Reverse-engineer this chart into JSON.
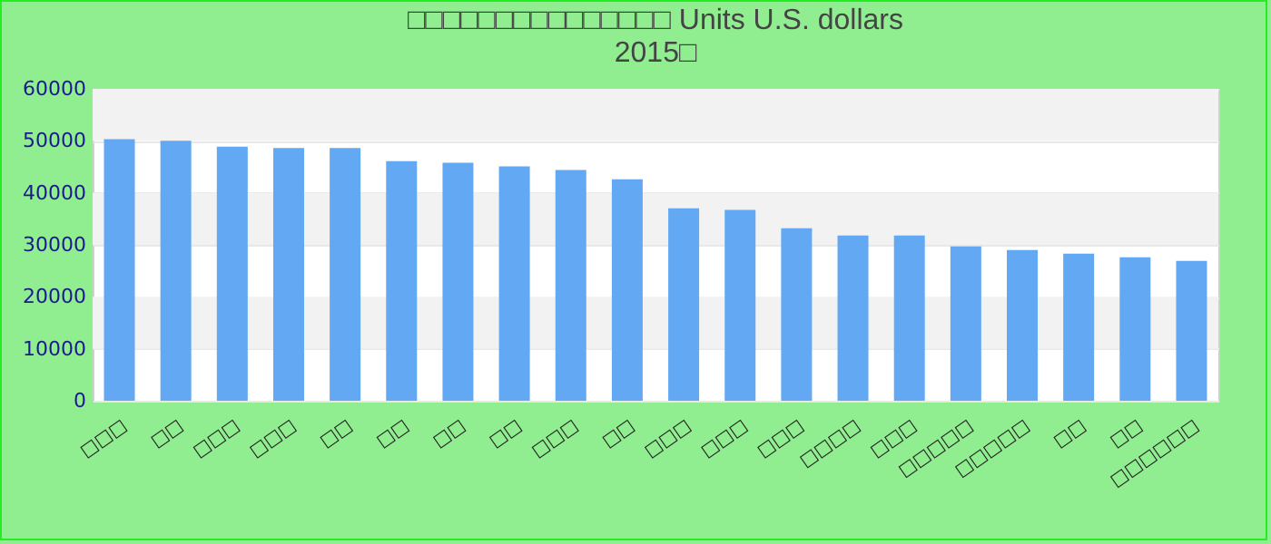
{
  "chart_data": {
    "type": "bar",
    "title": "□□□□□□□□□□□□□□□ Units U.S. dollars",
    "subtitle": "2015□",
    "categories": [
      "□□□",
      "□□",
      "□□□",
      "□□□",
      "□□",
      "□□",
      "□□",
      "□□",
      "□□□",
      "□□",
      "□□□",
      "□□□",
      "□□□",
      "□□□□",
      "□□□",
      "□□□□□",
      "□□□□□",
      "□□",
      "□□",
      "□□□□□□"
    ],
    "values": [
      50300,
      50000,
      48900,
      48600,
      48600,
      46100,
      45800,
      45100,
      44400,
      42600,
      37000,
      36700,
      33200,
      31800,
      31800,
      29700,
      29000,
      28300,
      27600,
      26900
    ],
    "color": "#63a8f2",
    "ylim": [
      0,
      60000
    ],
    "yticks": [
      0,
      10000,
      20000,
      30000,
      40000,
      50000,
      60000
    ],
    "grid": true
  }
}
